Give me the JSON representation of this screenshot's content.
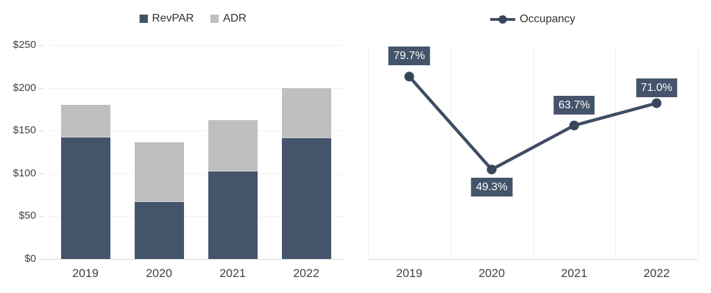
{
  "legend": {
    "bar_items": [
      {
        "label": "RevPAR",
        "color": "#44546A"
      },
      {
        "label": "ADR",
        "color": "#BFBFBF"
      }
    ],
    "line_item": {
      "label": "Occupancy",
      "color": "#3F4D63",
      "marker_color": "#39465A"
    }
  },
  "chart_data": [
    {
      "type": "bar",
      "title": "",
      "categories": [
        "2019",
        "2020",
        "2021",
        "2022"
      ],
      "series": [
        {
          "name": "RevPAR",
          "values": [
            143,
            67,
            103,
            142
          ],
          "color": "#44546A"
        },
        {
          "name": "ADR",
          "values": [
            180,
            136,
            162,
            200
          ],
          "color": "#BFBFBF"
        }
      ],
      "bar_style": "overlap: ADR full-height bar behind, RevPAR bar in front",
      "ylim": [
        0,
        250
      ],
      "ytick_labels": [
        "$0",
        "$50",
        "$100",
        "$150",
        "$200",
        "$250"
      ],
      "ytick_values": [
        0,
        50,
        100,
        150,
        200,
        250
      ],
      "grid": "horizontal",
      "legend_position": "top-center"
    },
    {
      "type": "line",
      "title": "",
      "name": "Occupancy",
      "categories": [
        "2019",
        "2020",
        "2021",
        "2022"
      ],
      "values": [
        79.7,
        49.3,
        63.7,
        71.0
      ],
      "data_labels": [
        "79.7%",
        "49.3%",
        "63.7%",
        "71.0%"
      ],
      "label_placements": [
        "above",
        "below",
        "above",
        "above"
      ],
      "label_gaps": [
        16,
        12,
        16,
        9
      ],
      "ylim": [
        20,
        90
      ],
      "grid": "vertical",
      "legend_position": "top-center",
      "colors": {
        "line": "#3F4D63",
        "marker": "#39465A",
        "label_box": "#44546A",
        "label_text": "#FFFFFF"
      }
    }
  ],
  "style": {
    "background": "#FFFFFF",
    "gridline": "#F1F1F1",
    "axis_line": "#D9D9D9",
    "tick_label_color": "#404040",
    "legend_text_color": "#303030"
  }
}
